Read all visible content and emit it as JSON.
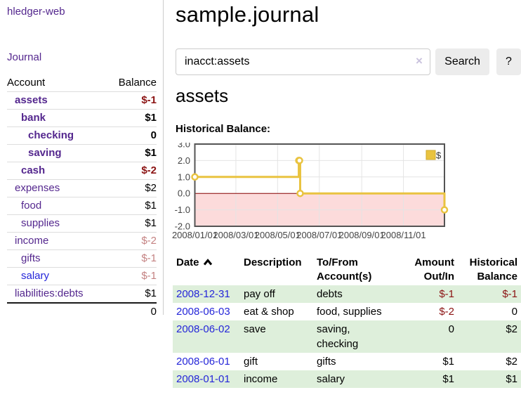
{
  "app": {
    "title": "hledger-web"
  },
  "sidebar": {
    "nav": [
      {
        "label": "Journal"
      }
    ],
    "accounts_table": {
      "headers": {
        "account": "Account",
        "balance": "Balance"
      },
      "rows": [
        {
          "name": "assets",
          "depth": 1,
          "bold": true,
          "balance": "$-1",
          "balance_style": "negative"
        },
        {
          "name": "bank",
          "depth": 2,
          "bold": true,
          "balance": "$1",
          "balance_style": "normal"
        },
        {
          "name": "checking",
          "depth": 3,
          "bold": true,
          "balance": "0",
          "balance_style": "normal"
        },
        {
          "name": "saving",
          "depth": 3,
          "bold": true,
          "balance": "$1",
          "balance_style": "normal"
        },
        {
          "name": "cash",
          "depth": 2,
          "bold": true,
          "balance": "$-2",
          "balance_style": "negative"
        },
        {
          "name": "expenses",
          "depth": 1,
          "bold": false,
          "balance": "$2",
          "balance_style": "normal"
        },
        {
          "name": "food",
          "depth": 2,
          "bold": false,
          "balance": "$1",
          "balance_style": "normal"
        },
        {
          "name": "supplies",
          "depth": 2,
          "bold": false,
          "balance": "$1",
          "balance_style": "normal"
        },
        {
          "name": "income",
          "depth": 1,
          "bold": false,
          "balance": "$-2",
          "balance_style": "negative-muted"
        },
        {
          "name": "gifts",
          "depth": 2,
          "bold": false,
          "balance": "$-1",
          "balance_style": "negative-muted"
        },
        {
          "name": "salary",
          "depth": 2,
          "bold": false,
          "balance": "$-1",
          "balance_style": "negative-muted",
          "link_style": "unvisited"
        },
        {
          "name": "liabilities:debts",
          "depth": 1,
          "bold": false,
          "balance": "$1",
          "balance_style": "normal"
        }
      ],
      "total": "0"
    }
  },
  "header": {
    "title": "sample.journal"
  },
  "search": {
    "value": "inacct:assets",
    "clear_symbol": "×",
    "button_label": "Search",
    "help_label": "?"
  },
  "account_page": {
    "title": "assets",
    "chart_label": "Historical Balance:"
  },
  "chart_data": {
    "type": "line",
    "title": "Historical Balance",
    "step": true,
    "series": [
      {
        "name": "$",
        "color": "#e9c340",
        "points": [
          {
            "date": "2008-01-01",
            "value": 1
          },
          {
            "date": "2008-06-01",
            "value": 2
          },
          {
            "date": "2008-06-02",
            "value": 2
          },
          {
            "date": "2008-06-03",
            "value": 0
          },
          {
            "date": "2008-12-31",
            "value": -1
          }
        ]
      }
    ],
    "x_ticks": [
      "2008/01/01",
      "2008/03/01",
      "2008/05/01",
      "2008/07/01",
      "2008/09/01",
      "2008/11/01"
    ],
    "y_ticks": [
      "3.0",
      "2.0",
      "1.0",
      "0.0",
      "-1.0",
      "-2.0"
    ],
    "ylim": [
      -2,
      3
    ],
    "x_range": [
      "2008-01-01",
      "2008-12-31"
    ],
    "grid": true,
    "negative_region_fill": "#fcdbdb",
    "zero_line_color": "#8b0000",
    "legend": {
      "label": "$",
      "position": "top-right"
    }
  },
  "register": {
    "headers": {
      "date": [
        "Date"
      ],
      "description": [
        "Description"
      ],
      "accounts": [
        "To/From",
        "Account(s)"
      ],
      "amount": [
        "Amount",
        "Out/In"
      ],
      "balance": [
        "Historical",
        "Balance"
      ]
    },
    "rows": [
      {
        "date": "2008-12-31",
        "description": "pay off",
        "accounts": "debts",
        "amount": "$-1",
        "balance": "$-1",
        "striped": true
      },
      {
        "date": "2008-06-03",
        "description": "eat & shop",
        "accounts": "food, supplies",
        "amount": "$-2",
        "balance": "0",
        "striped": false
      },
      {
        "date": "2008-06-02",
        "description": "save",
        "accounts": "saving, checking",
        "amount": "0",
        "balance": "$2",
        "striped": true
      },
      {
        "date": "2008-06-01",
        "description": "gift",
        "accounts": "gifts",
        "amount": "$1",
        "balance": "$2",
        "striped": false
      },
      {
        "date": "2008-01-01",
        "description": "income",
        "accounts": "salary",
        "amount": "$1",
        "balance": "$1",
        "striped": true
      }
    ]
  },
  "colors": {
    "link_purple": "#54278e",
    "link_blue": "#2526d9",
    "negative": "#8b1313",
    "negative_muted": "#c48282",
    "stripe_green": "#deefdb",
    "chart_gold": "#e9c340",
    "chart_negative_bg": "#fcdbdb",
    "chart_zero_line": "#8b0000"
  }
}
